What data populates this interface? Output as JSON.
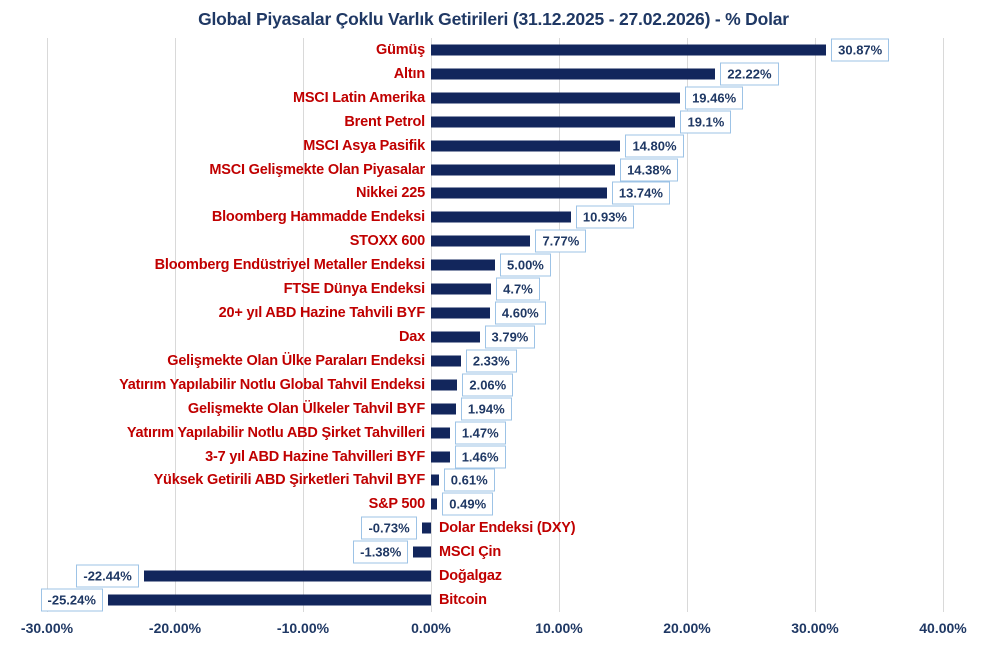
{
  "colors": {
    "background": "#ffffff",
    "bar": "#12265C",
    "navy_text": "#1F3864",
    "category_red": "#C00000",
    "value_box_border": "#9DC3E6",
    "gridline": "#D9D9D9"
  },
  "chart_data": {
    "type": "bar",
    "orientation": "horizontal",
    "title": "Global Piyasalar Çoklu Varlık Getirileri (31.12.2025 - 27.02.2026) - % Dolar",
    "xlabel": "",
    "ylabel": "",
    "xlim": [
      -30,
      40
    ],
    "grid": true,
    "legend": "none",
    "categories": [
      "Gümüş",
      "Altın",
      "MSCI Latin Amerika",
      "Brent Petrol",
      "MSCI Asya Pasifik",
      "MSCI Gelişmekte Olan Piyasalar",
      "Nikkei 225",
      "Bloomberg Hammadde Endeksi",
      "STOXX 600",
      "Bloomberg Endüstriyel Metaller Endeksi",
      "FTSE Dünya Endeksi",
      "20+ yıl ABD Hazine Tahvili BYF",
      "Dax",
      "Gelişmekte Olan Ülke Paraları Endeksi",
      "Yatırım Yapılabilir Notlu Global Tahvil Endeksi",
      "Gelişmekte Olan Ülkeler Tahvil BYF",
      "Yatırım Yapılabilir Notlu  ABD Şirket Tahvilleri",
      "3-7 yıl ABD Hazine Tahvilleri BYF",
      "Yüksek Getirili ABD Şirketleri Tahvil BYF",
      "S&P 500",
      "Dolar Endeksi (DXY)",
      "MSCI Çin",
      "Doğalgaz",
      "Bitcoin"
    ],
    "values": [
      30.87,
      22.22,
      19.46,
      19.1,
      14.8,
      14.38,
      13.74,
      10.93,
      7.77,
      5.0,
      4.7,
      4.6,
      3.79,
      2.33,
      2.06,
      1.94,
      1.47,
      1.46,
      0.61,
      0.49,
      -0.73,
      -1.38,
      -22.44,
      -25.24
    ],
    "value_labels": [
      "30.87%",
      "22.22%",
      "19.46%",
      "19.1%",
      "14.80%",
      "14.38%",
      "13.74%",
      "10.93%",
      "7.77%",
      "5.00%",
      "4.7%",
      "4.60%",
      "3.79%",
      "2.33%",
      "2.06%",
      "1.94%",
      "1.47%",
      "1.46%",
      "0.61%",
      "0.49%",
      "-0.73%",
      "-1.38%",
      "-22.44%",
      "-25.24%"
    ],
    "x_tick_values": [
      -30,
      -20,
      -10,
      0,
      10,
      20,
      30,
      40
    ],
    "x_ticks": [
      "-30.00%",
      "-20.00%",
      "-10.00%",
      "0.00%",
      "10.00%",
      "20.00%",
      "30.00%",
      "40.00%"
    ]
  }
}
